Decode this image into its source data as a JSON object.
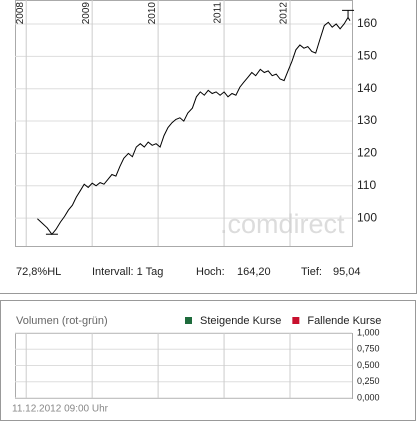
{
  "chart_data": [
    {
      "type": "line",
      "x": [
        2008.17,
        2008.24,
        2008.32,
        2008.39,
        2008.45,
        2008.52,
        2008.58,
        2008.64,
        2008.7,
        2008.76,
        2008.82,
        2008.88,
        2008.94,
        2009.0,
        2009.06,
        2009.12,
        2009.18,
        2009.24,
        2009.3,
        2009.36,
        2009.42,
        2009.48,
        2009.55,
        2009.61,
        2009.67,
        2009.73,
        2009.79,
        2009.85,
        2009.91,
        2009.97,
        2010.03,
        2010.09,
        2010.15,
        2010.21,
        2010.27,
        2010.33,
        2010.39,
        2010.45,
        2010.52,
        2010.58,
        2010.64,
        2010.7,
        2010.76,
        2010.82,
        2010.88,
        2010.94,
        2011.0,
        2011.06,
        2011.12,
        2011.18,
        2011.24,
        2011.3,
        2011.36,
        2011.42,
        2011.48,
        2011.55,
        2011.61,
        2011.67,
        2011.73,
        2011.79,
        2011.85,
        2011.91,
        2011.97,
        2012.03,
        2012.09,
        2012.15,
        2012.21,
        2012.27,
        2012.33,
        2012.39,
        2012.45,
        2012.52,
        2012.58,
        2012.64,
        2012.7,
        2012.76,
        2012.82,
        2012.88,
        2012.91
      ],
      "series": [
        {
          "color": "#000000",
          "values": [
            99.8,
            98.5,
            97.0,
            95.0,
            96.5,
            98.8,
            100.5,
            102.5,
            104.0,
            106.5,
            108.5,
            110.5,
            109.5,
            110.8,
            110.0,
            111.0,
            110.5,
            112.0,
            113.5,
            113.0,
            116.0,
            118.5,
            120.0,
            119.0,
            122.0,
            123.0,
            122.0,
            123.5,
            122.5,
            123.0,
            122.0,
            125.5,
            128.0,
            129.5,
            130.5,
            131.0,
            130.0,
            132.5,
            134.0,
            137.5,
            139.0,
            138.0,
            139.5,
            138.5,
            139.0,
            138.0,
            139.0,
            137.5,
            138.5,
            138.0,
            140.5,
            142.0,
            143.5,
            145.0,
            144.0,
            146.0,
            145.0,
            145.5,
            144.0,
            144.5,
            143.0,
            142.5,
            145.5,
            148.5,
            152.0,
            153.5,
            152.5,
            153.0,
            151.5,
            151.0,
            155.0,
            159.5,
            160.5,
            159.0,
            160.0,
            158.5,
            160.0,
            162.0,
            161.0
          ]
        }
      ],
      "xlim": [
        2007.83,
        2012.94
      ],
      "xticks": [
        2008,
        2009,
        2010,
        2011,
        2012
      ],
      "ylim": [
        91.4,
        167.4
      ],
      "yticks": [
        100,
        110,
        120,
        130,
        140,
        150,
        160
      ],
      "grid": true,
      "watermark": ".comdirect",
      "info": {
        "range": "72,8%HL",
        "interval": "Intervall: 1 Tag",
        "high_label": "Hoch:",
        "high": {
          "value": 164.2,
          "label": "164,20"
        },
        "low_label": "Tief:",
        "low": {
          "value": 95.04,
          "label": "95,04"
        }
      }
    },
    {
      "type": "bar",
      "title": "Volumen (rot-grün)",
      "series": [
        {
          "name": "Steigende Kurse",
          "color": "#1e6b3c",
          "values": []
        },
        {
          "name": "Fallende Kurse",
          "color": "#c8102e",
          "values": []
        }
      ],
      "xlim": [
        2007.83,
        2012.94
      ],
      "xticks": [
        2008,
        2009,
        2010,
        2011,
        2012
      ],
      "ylim": [
        0,
        1
      ],
      "yticks": [
        {
          "value": 1,
          "label": "1,000"
        },
        {
          "value": 0.75,
          "label": "0,750"
        },
        {
          "value": 0.5,
          "label": "0,500"
        },
        {
          "value": 0.25,
          "label": "0,250"
        },
        {
          "value": 0,
          "label": "0,000"
        }
      ],
      "grid": true,
      "footer": "11.12.2012 09:00 Uhr"
    }
  ]
}
